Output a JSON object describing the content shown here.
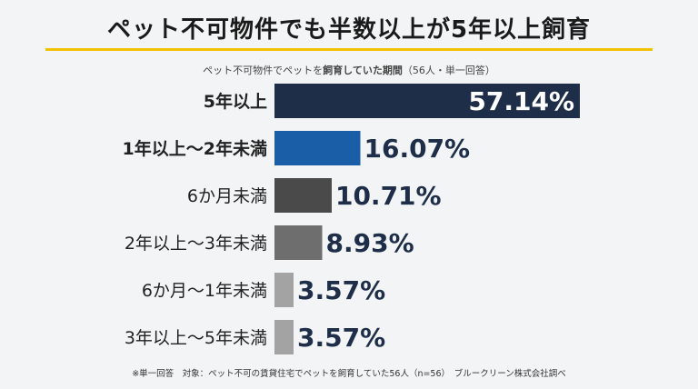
{
  "title": "ペット不可物件でも半数以上が5年以上飼育",
  "subtitle_pre": "ペット不可物件でペットを",
  "subtitle_bold": "飼育していた期間",
  "subtitle_post": "（56人・単一回答）",
  "footnote": "※単一回答　対象：ペット不可の賃貸住宅でペットを飼育していた56人（n=56）　ブルークリーン株式会社調べ",
  "chart_data": {
    "type": "bar",
    "orientation": "horizontal",
    "categories": [
      "5年以上",
      "1年以上～2年未満",
      "6か月未満",
      "2年以上～3年未満",
      "6か月～1年未満",
      "3年以上～5年未満"
    ],
    "values": [
      57.14,
      16.07,
      10.71,
      8.93,
      3.57,
      3.57
    ],
    "value_labels": [
      "57.14%",
      "16.07%",
      "10.71%",
      "8.93%",
      "3.57%",
      "3.57%"
    ],
    "colors": [
      "#1e2d48",
      "#1b5ea8",
      "#4a4a4a",
      "#6e6e6e",
      "#a3a3a3",
      "#a3a3a3"
    ],
    "label_colors": [
      "#ffffff",
      "#1e2d48",
      "#1e2d48",
      "#1e2d48",
      "#1e2d48",
      "#1e2d48"
    ],
    "bold_categories": [
      true,
      true,
      false,
      false,
      false,
      false
    ],
    "xlim": [
      0,
      57.14
    ]
  }
}
